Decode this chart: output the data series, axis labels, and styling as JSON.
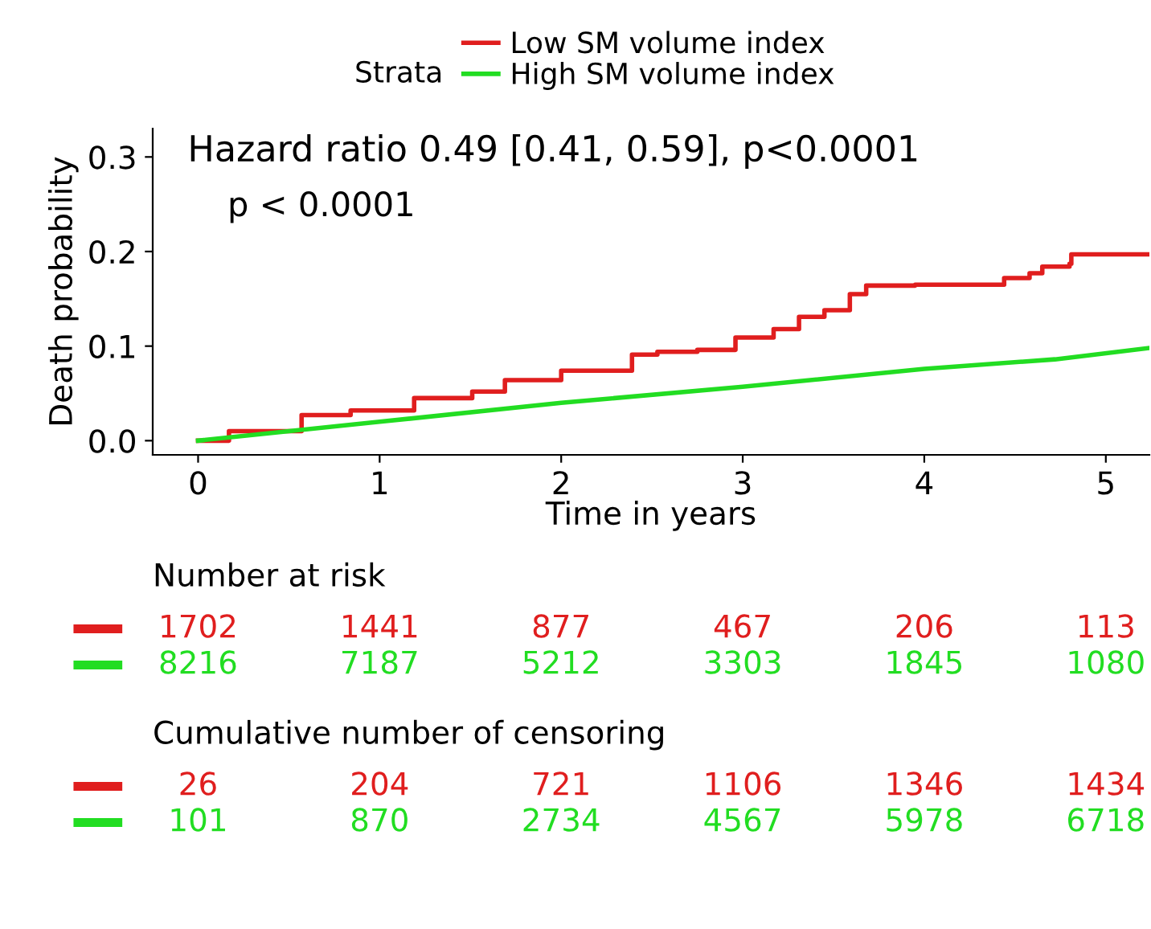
{
  "chart_data": [
    {
      "type": "step",
      "xlabel": "Time in years",
      "ylabel": "Death probability",
      "legend_title": "Strata",
      "legend": "top",
      "xlim": [
        -0.25,
        5.24
      ],
      "ylim": [
        -0.015,
        0.33
      ],
      "xticks": [
        0,
        1,
        2,
        3,
        4,
        5
      ],
      "yticks": [
        {
          "value": 0,
          "label": "0.0"
        },
        0.1,
        0.2,
        0.3
      ],
      "grid": false,
      "annotations": [
        "Hazard ratio 0.49 [0.41, 0.59], p<0.0001",
        "p < 0.0001"
      ],
      "series": [
        {
          "name": "Low SM volume index",
          "color": "#e01e1e",
          "type": "step",
          "x": [
            0,
            0.17,
            0.57,
            0.84,
            1.19,
            1.51,
            1.69,
            2.0,
            2.39,
            2.53,
            2.75,
            2.96,
            3.17,
            3.31,
            3.45,
            3.59,
            3.68,
            3.95,
            4.44,
            4.58,
            4.65,
            4.8,
            4.81,
            5.24
          ],
          "values": [
            0,
            0.01,
            0.027,
            0.032,
            0.045,
            0.052,
            0.064,
            0.074,
            0.091,
            0.094,
            0.096,
            0.109,
            0.118,
            0.131,
            0.138,
            0.155,
            0.164,
            0.165,
            0.172,
            0.177,
            0.184,
            0.187,
            0.197,
            0.197
          ]
        },
        {
          "name": "High SM volume index",
          "color": "#22dd22",
          "type": "line",
          "x": [
            0,
            1,
            2,
            3,
            4,
            4.72,
            5.24
          ],
          "values": [
            0,
            0.02,
            0.04,
            0.057,
            0.076,
            0.086,
            0.098
          ]
        }
      ]
    },
    {
      "type": "other",
      "title": "Number at risk",
      "colors": [
        "#e01e1e",
        "#22dd22"
      ],
      "annotations": [
        "1702",
        "1441",
        "877",
        "467",
        "206",
        "113",
        "8216",
        "7187",
        "5212",
        "3303",
        "1845",
        "1080"
      ]
    },
    {
      "type": "other",
      "title": "Cumulative number of censoring",
      "colors": [
        "#e01e1e",
        "#22dd22"
      ],
      "annotations": [
        "26",
        "204",
        "721",
        "1106",
        "1346",
        "1434",
        "101",
        "870",
        "2734",
        "4567",
        "5978",
        "6718"
      ]
    }
  ]
}
